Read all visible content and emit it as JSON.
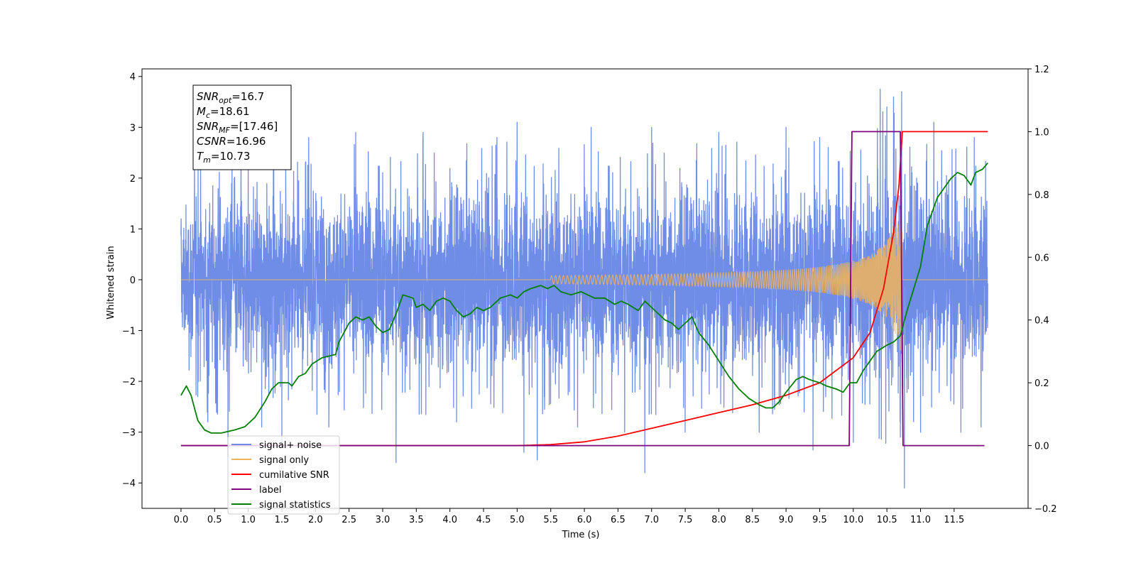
{
  "chart_data": {
    "type": "line",
    "xlabel": "Time (s)",
    "ylabel": "Whitened strain",
    "xlim": [
      -0.58,
      12.6
    ],
    "ylim": [
      -4.5,
      4.15
    ],
    "y2lim": [
      -0.2,
      1.2
    ],
    "x_ticks": [
      "0.0",
      "0.5",
      "1.0",
      "1.5",
      "2.0",
      "2.5",
      "3.0",
      "3.5",
      "4.0",
      "4.5",
      "5.0",
      "5.5",
      "6.0",
      "6.5",
      "7.0",
      "7.5",
      "8.0",
      "8.5",
      "9.0",
      "9.5",
      "10.0",
      "10.5",
      "11.0",
      "11.5"
    ],
    "y_ticks": [
      "4",
      "3",
      "2",
      "1",
      "0",
      "−1",
      "−2",
      "−3",
      "−4"
    ],
    "y2_ticks": [
      "1.2",
      "1.0",
      "0.8",
      "0.6",
      "0.4",
      "0.2",
      "0.0",
      "−0.2"
    ],
    "legend_position": "lower-left",
    "info_box": {
      "snr_opt": {
        "label": "SNR",
        "sub": "opt",
        "value": "=16.7"
      },
      "mc": {
        "label": "M",
        "sub": "c",
        "value": "=18.61"
      },
      "snr_mf": {
        "label": "SNR",
        "sub": "MF",
        "value": "=[17.46]"
      },
      "csnr": {
        "label": "CSNR",
        "value": "=16.96"
      },
      "tm": {
        "label": "T",
        "sub": "m",
        "value": "=10.73"
      }
    },
    "series": [
      {
        "name": "signal+ noise",
        "axis": "left",
        "color": "#6f8de6",
        "description_of_envelope": "noise band roughly between -2 and 2.5 with spikes up to 3.7 and down to -4.1",
        "t_range": [
          0.0,
          12.0
        ],
        "envelope_upper": [
          [
            0.0,
            1.5
          ],
          [
            0.5,
            1.9
          ],
          [
            1.0,
            1.9
          ],
          [
            1.5,
            1.9
          ],
          [
            2.0,
            1.9
          ],
          [
            3.0,
            1.9
          ],
          [
            4.0,
            1.9
          ],
          [
            5.0,
            1.9
          ],
          [
            6.0,
            1.9
          ],
          [
            7.0,
            1.9
          ],
          [
            8.0,
            1.9
          ],
          [
            9.0,
            1.9
          ],
          [
            10.0,
            2.0
          ],
          [
            10.5,
            2.4
          ],
          [
            10.7,
            2.6
          ],
          [
            11.0,
            1.9
          ],
          [
            12.0,
            1.8
          ]
        ],
        "envelope_lower": [
          [
            0.0,
            -1.5
          ],
          [
            0.5,
            -1.9
          ],
          [
            1.0,
            -1.9
          ],
          [
            2.0,
            -1.9
          ],
          [
            3.0,
            -1.9
          ],
          [
            4.0,
            -1.9
          ],
          [
            5.0,
            -1.9
          ],
          [
            6.0,
            -1.9
          ],
          [
            7.0,
            -1.9
          ],
          [
            8.0,
            -1.9
          ],
          [
            9.0,
            -1.9
          ],
          [
            10.0,
            -2.0
          ],
          [
            10.5,
            -2.3
          ],
          [
            10.7,
            -2.5
          ],
          [
            11.0,
            -1.9
          ],
          [
            12.0,
            -1.8
          ]
        ],
        "spikes": [
          [
            0.2,
            2.5
          ],
          [
            0.25,
            -2.3
          ],
          [
            0.4,
            -2.8
          ],
          [
            0.7,
            -3.5
          ],
          [
            1.0,
            2.7
          ],
          [
            1.2,
            -2.9
          ],
          [
            1.5,
            -3.2
          ],
          [
            1.9,
            2.8
          ],
          [
            2.2,
            -2.9
          ],
          [
            2.6,
            2.9
          ],
          [
            3.2,
            -3.6
          ],
          [
            3.6,
            2.9
          ],
          [
            4.1,
            -2.8
          ],
          [
            4.7,
            2.8
          ],
          [
            5.0,
            3.1
          ],
          [
            5.1,
            -3.4
          ],
          [
            5.3,
            -3.55
          ],
          [
            5.9,
            -2.9
          ],
          [
            6.1,
            3.0
          ],
          [
            6.6,
            -3.0
          ],
          [
            6.9,
            -3.8
          ],
          [
            7.0,
            3.0
          ],
          [
            7.5,
            -3.0
          ],
          [
            8.0,
            2.9
          ],
          [
            8.6,
            -3.0
          ],
          [
            9.0,
            3.0
          ],
          [
            9.4,
            -3.35
          ],
          [
            9.5,
            2.8
          ],
          [
            10.0,
            -3.2
          ],
          [
            10.4,
            3.75
          ],
          [
            10.5,
            3.4
          ],
          [
            10.6,
            3.6
          ],
          [
            10.7,
            -3.1
          ],
          [
            10.72,
            3.7
          ],
          [
            10.76,
            -4.1
          ],
          [
            11.0,
            -3.0
          ],
          [
            11.2,
            3.1
          ],
          [
            11.6,
            -3.0
          ],
          [
            11.8,
            2.8
          ],
          [
            11.9,
            -2.9
          ]
        ]
      },
      {
        "name": "signal only",
        "axis": "left",
        "color": "#f2b45a",
        "chirp_start": 5.5,
        "chirp_end": 10.73,
        "chirp_peak_amplitude": 1.7
      },
      {
        "name": "cumilative SNR",
        "axis": "right",
        "color": "#ff0000",
        "points": [
          [
            0.0,
            0.0
          ],
          [
            5.0,
            0.0
          ],
          [
            5.5,
            0.003
          ],
          [
            6.0,
            0.012
          ],
          [
            6.5,
            0.03
          ],
          [
            7.0,
            0.055
          ],
          [
            7.5,
            0.08
          ],
          [
            8.0,
            0.105
          ],
          [
            8.5,
            0.13
          ],
          [
            9.0,
            0.16
          ],
          [
            9.5,
            0.2
          ],
          [
            10.0,
            0.28
          ],
          [
            10.25,
            0.36
          ],
          [
            10.45,
            0.5
          ],
          [
            10.6,
            0.68
          ],
          [
            10.68,
            0.83
          ],
          [
            10.73,
            1.0
          ],
          [
            12.0,
            1.0
          ]
        ]
      },
      {
        "name": "label",
        "axis": "right",
        "color": "#800080",
        "points": [
          [
            0.0,
            0.0
          ],
          [
            9.94,
            0.0
          ],
          [
            9.98,
            1.0
          ],
          [
            10.7,
            1.0
          ],
          [
            10.74,
            0.0
          ],
          [
            11.95,
            0.0
          ]
        ]
      },
      {
        "name": "signal statistics",
        "axis": "right",
        "color": "#008000",
        "points": [
          [
            0.0,
            0.16
          ],
          [
            0.08,
            0.19
          ],
          [
            0.15,
            0.16
          ],
          [
            0.25,
            0.08
          ],
          [
            0.35,
            0.05
          ],
          [
            0.45,
            0.04
          ],
          [
            0.6,
            0.04
          ],
          [
            0.8,
            0.05
          ],
          [
            0.95,
            0.06
          ],
          [
            1.1,
            0.09
          ],
          [
            1.25,
            0.14
          ],
          [
            1.35,
            0.18
          ],
          [
            1.45,
            0.2
          ],
          [
            1.6,
            0.2
          ],
          [
            1.65,
            0.19
          ],
          [
            1.75,
            0.22
          ],
          [
            1.85,
            0.23
          ],
          [
            1.95,
            0.26
          ],
          [
            2.1,
            0.28
          ],
          [
            2.3,
            0.29
          ],
          [
            2.35,
            0.33
          ],
          [
            2.5,
            0.39
          ],
          [
            2.6,
            0.41
          ],
          [
            2.7,
            0.4
          ],
          [
            2.8,
            0.41
          ],
          [
            2.9,
            0.38
          ],
          [
            3.0,
            0.36
          ],
          [
            3.1,
            0.37
          ],
          [
            3.2,
            0.42
          ],
          [
            3.3,
            0.48
          ],
          [
            3.45,
            0.47
          ],
          [
            3.5,
            0.44
          ],
          [
            3.6,
            0.45
          ],
          [
            3.7,
            0.43
          ],
          [
            3.8,
            0.46
          ],
          [
            3.9,
            0.47
          ],
          [
            4.0,
            0.46
          ],
          [
            4.1,
            0.43
          ],
          [
            4.2,
            0.41
          ],
          [
            4.3,
            0.42
          ],
          [
            4.4,
            0.44
          ],
          [
            4.5,
            0.43
          ],
          [
            4.6,
            0.44
          ],
          [
            4.75,
            0.47
          ],
          [
            4.9,
            0.48
          ],
          [
            5.0,
            0.47
          ],
          [
            5.1,
            0.49
          ],
          [
            5.2,
            0.5
          ],
          [
            5.35,
            0.51
          ],
          [
            5.45,
            0.5
          ],
          [
            5.55,
            0.51
          ],
          [
            5.65,
            0.49
          ],
          [
            5.8,
            0.48
          ],
          [
            5.95,
            0.49
          ],
          [
            6.05,
            0.48
          ],
          [
            6.15,
            0.47
          ],
          [
            6.3,
            0.47
          ],
          [
            6.45,
            0.45
          ],
          [
            6.55,
            0.46
          ],
          [
            6.65,
            0.45
          ],
          [
            6.8,
            0.43
          ],
          [
            6.9,
            0.46
          ],
          [
            7.0,
            0.44
          ],
          [
            7.1,
            0.42
          ],
          [
            7.2,
            0.4
          ],
          [
            7.3,
            0.39
          ],
          [
            7.4,
            0.37
          ],
          [
            7.5,
            0.39
          ],
          [
            7.6,
            0.41
          ],
          [
            7.7,
            0.36
          ],
          [
            7.85,
            0.32
          ],
          [
            8.0,
            0.27
          ],
          [
            8.15,
            0.22
          ],
          [
            8.3,
            0.18
          ],
          [
            8.45,
            0.15
          ],
          [
            8.6,
            0.13
          ],
          [
            8.7,
            0.12
          ],
          [
            8.8,
            0.12
          ],
          [
            8.9,
            0.14
          ],
          [
            9.0,
            0.17
          ],
          [
            9.15,
            0.21
          ],
          [
            9.25,
            0.22
          ],
          [
            9.35,
            0.21
          ],
          [
            9.5,
            0.2
          ],
          [
            9.6,
            0.19
          ],
          [
            9.75,
            0.18
          ],
          [
            9.85,
            0.17
          ],
          [
            9.95,
            0.2
          ],
          [
            10.05,
            0.2
          ],
          [
            10.15,
            0.24
          ],
          [
            10.25,
            0.27
          ],
          [
            10.35,
            0.3
          ],
          [
            10.5,
            0.32
          ],
          [
            10.6,
            0.33
          ],
          [
            10.7,
            0.35
          ],
          [
            10.8,
            0.43
          ],
          [
            10.9,
            0.5
          ],
          [
            11.0,
            0.57
          ],
          [
            11.1,
            0.7
          ],
          [
            11.25,
            0.79
          ],
          [
            11.35,
            0.82
          ],
          [
            11.45,
            0.85
          ],
          [
            11.55,
            0.87
          ],
          [
            11.65,
            0.86
          ],
          [
            11.75,
            0.83
          ],
          [
            11.82,
            0.87
          ],
          [
            11.92,
            0.88
          ],
          [
            12.0,
            0.9
          ]
        ]
      }
    ]
  }
}
